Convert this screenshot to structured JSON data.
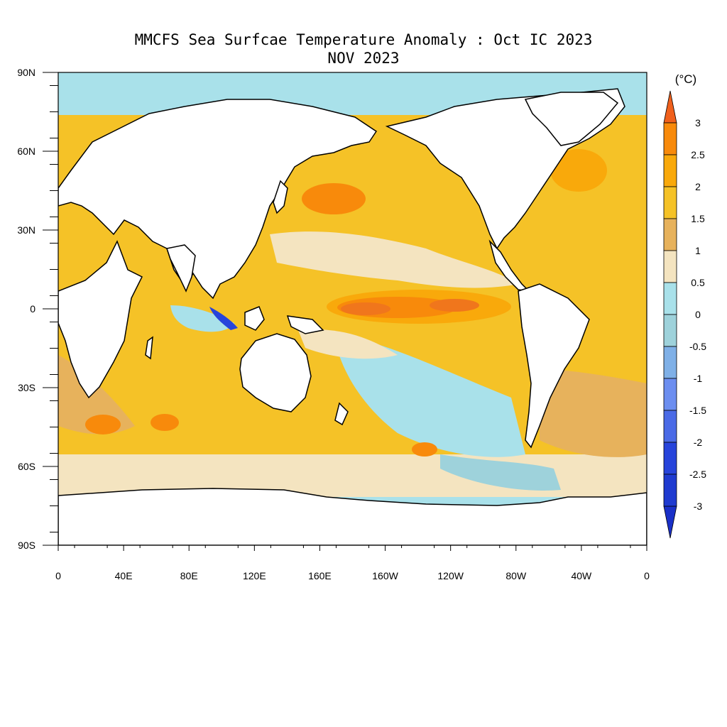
{
  "title": {
    "line1": "MMCFS Sea Surfcae Temperature Anomaly : Oct IC 2023",
    "line2": "NOV 2023"
  },
  "map": {
    "projection": "cylindrical equidistant",
    "lon_range": [
      0,
      360
    ],
    "lat_range": [
      -90,
      90
    ],
    "x_ticks": [
      "0",
      "40E",
      "80E",
      "120E",
      "160E",
      "160W",
      "120W",
      "80W",
      "40W",
      "0"
    ],
    "y_ticks": [
      "90N",
      "60N",
      "30N",
      "0",
      "30S",
      "60S",
      "90S"
    ],
    "land_color": "#ffffff",
    "coastline_color": "#000000"
  },
  "colorbar": {
    "unit": "(°C)",
    "labels": [
      "3",
      "2.5",
      "2",
      "1.5",
      "1",
      "0.5",
      "0",
      "-0.5",
      "-1",
      "-1.5",
      "-2",
      "-2.5",
      "-3"
    ],
    "colors": [
      "#f0761c",
      "#f88a0b",
      "#f9a90b",
      "#f5c227",
      "#e7b25c",
      "#f4e4c0",
      "#a9e1ea",
      "#9ed2db",
      "#7fb0e7",
      "#6c8ef0",
      "#4a6ae6",
      "#2744db",
      "#1f3bd0",
      "#1a2fc5"
    ],
    "triangle_top": "#f0601c",
    "triangle_bottom": "#1a30c8"
  }
}
